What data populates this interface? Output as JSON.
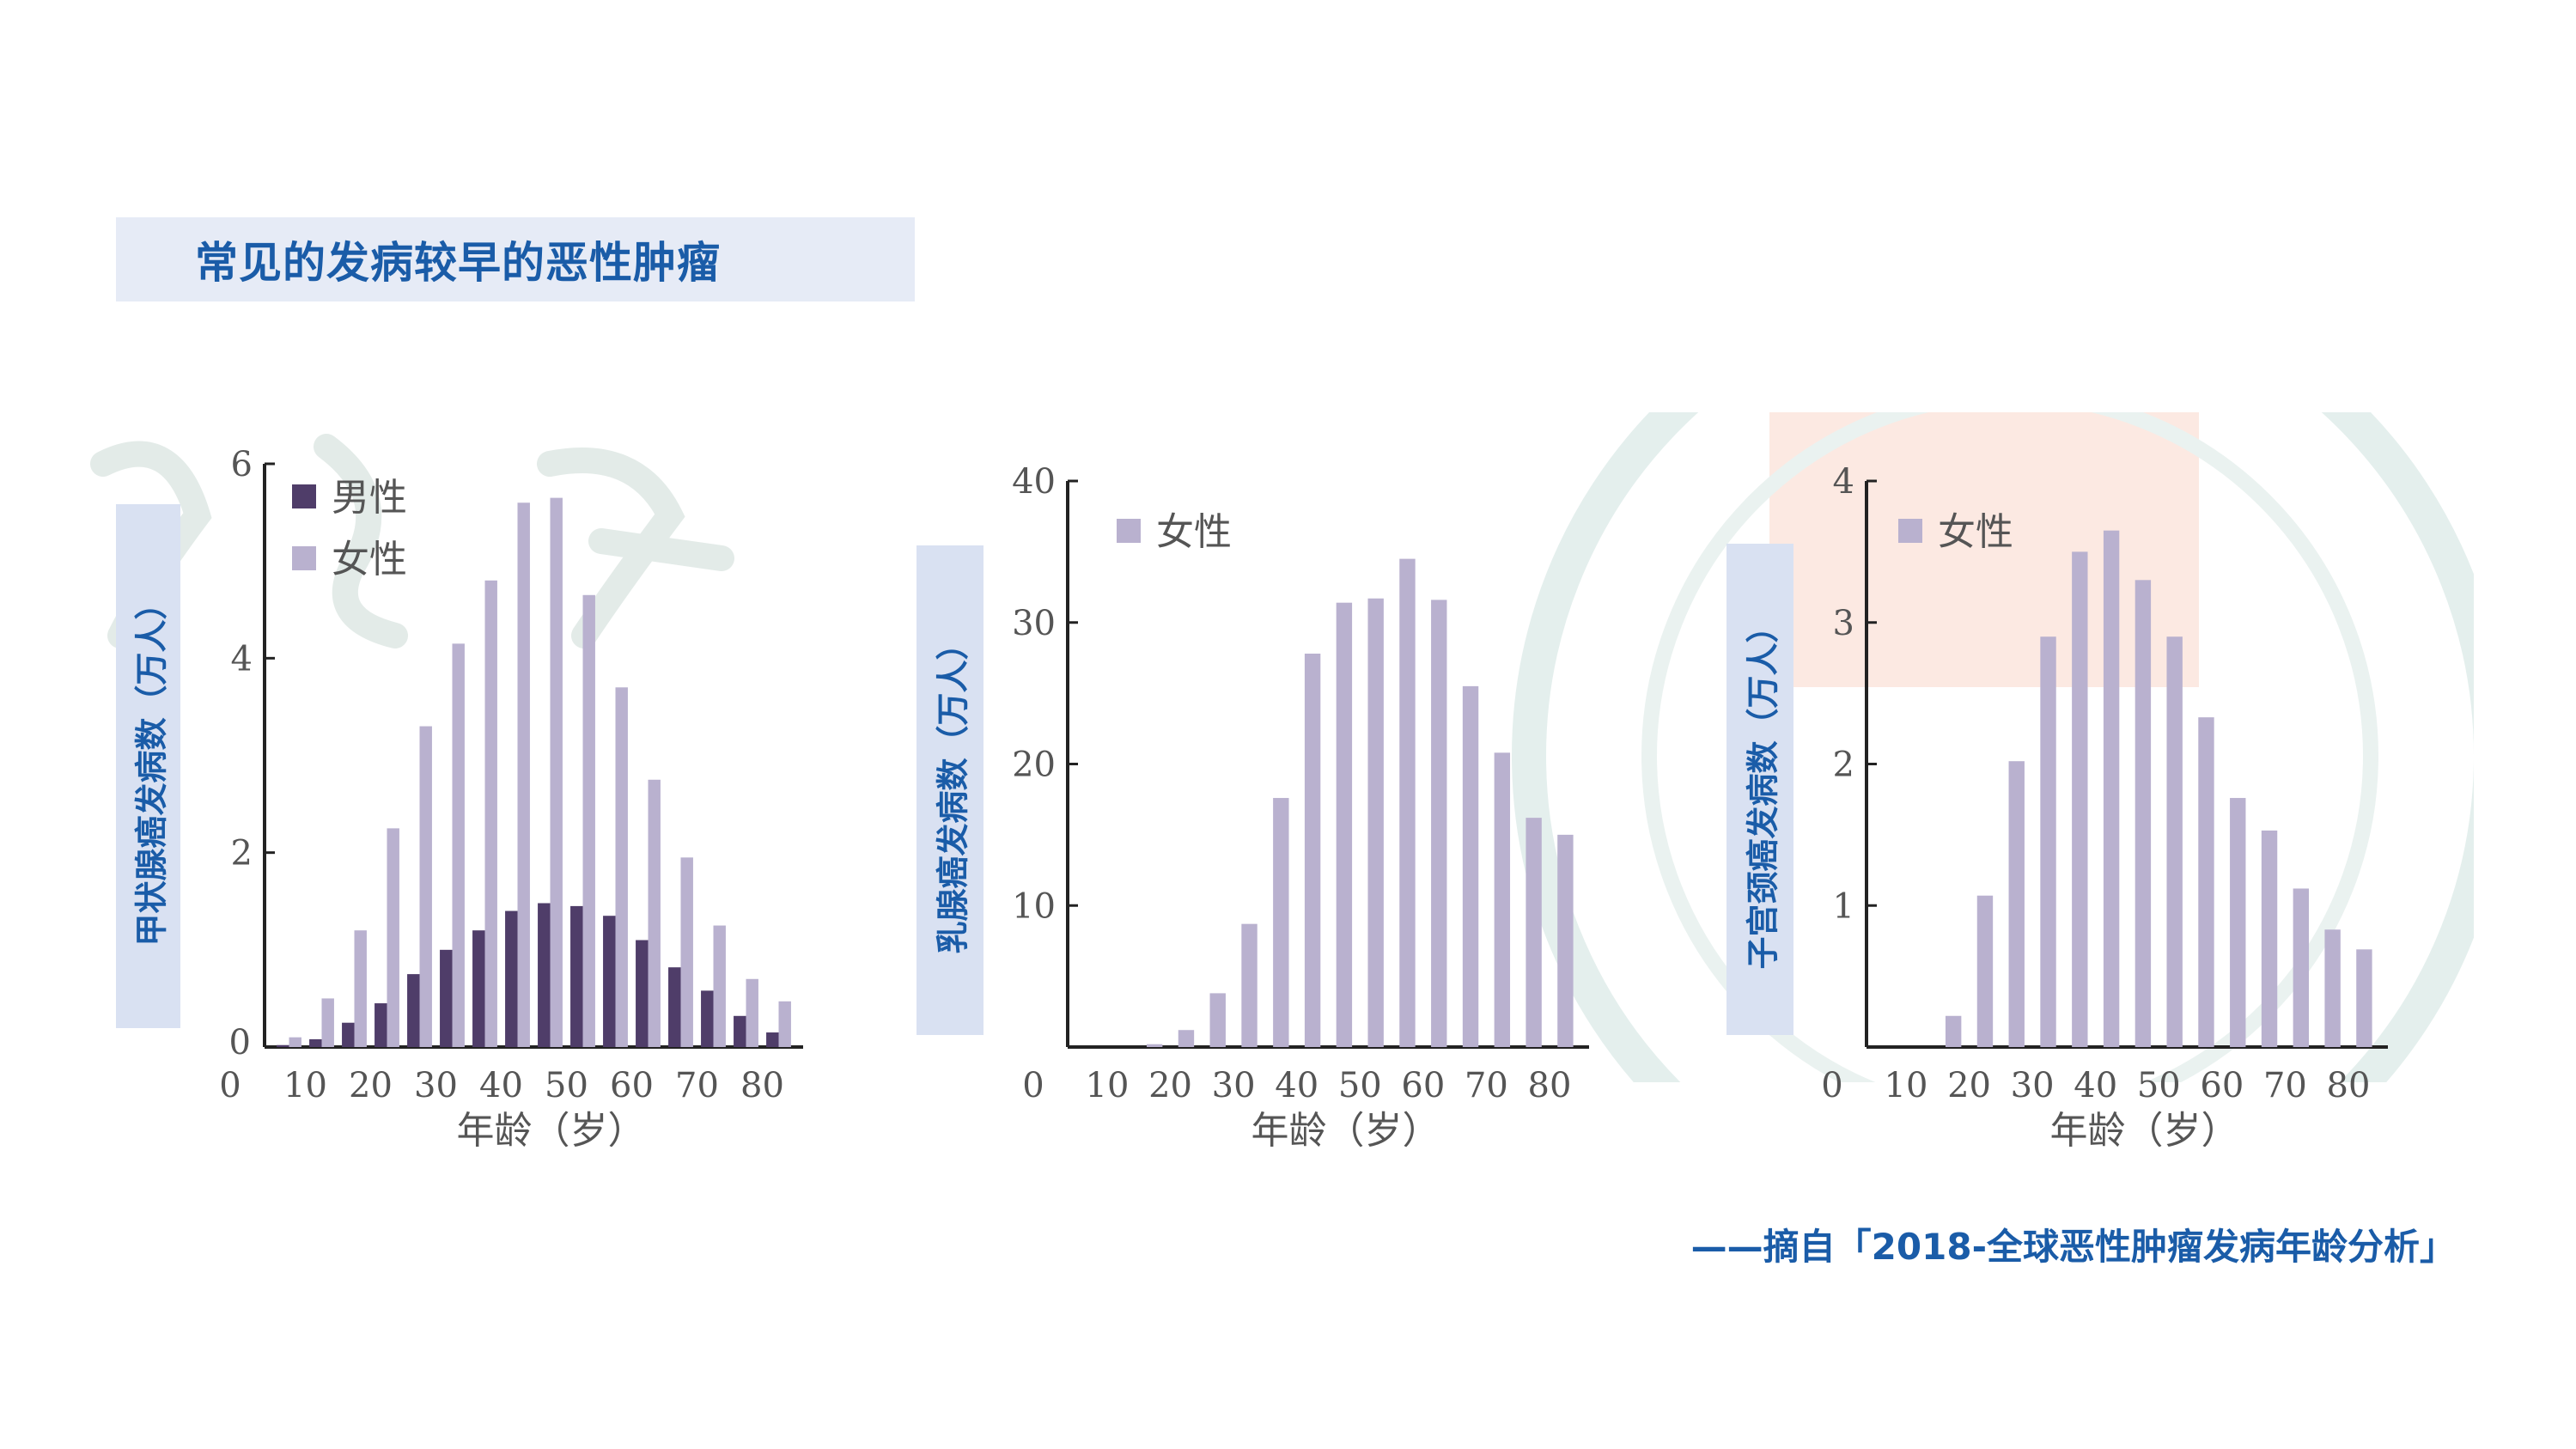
{
  "title": "常见的发病较早的恶性肿瘤",
  "source": "——摘自「2018-全球恶性肿瘤发病年龄分析」",
  "colors": {
    "male": "#4f3d69",
    "female": "#b9b1cf",
    "accent": "#1a5ca8",
    "axis": "#222222"
  },
  "chart_data": [
    {
      "type": "bar",
      "ylabel": "甲状腺癌发病数（万人）",
      "xlabel": "年龄（岁）",
      "x_origin_label": "0",
      "xticks": [
        "10",
        "20",
        "30",
        "40",
        "50",
        "60",
        "70",
        "80"
      ],
      "yticks": [
        "2",
        "4",
        "6"
      ],
      "y_origin_label": "0",
      "ylim": [
        0,
        6
      ],
      "legend": [
        {
          "name": "男性",
          "color": "#4f3d69"
        },
        {
          "name": "女性",
          "color": "#b9b1cf"
        }
      ],
      "categories": [
        "10-14",
        "15-19",
        "20-24",
        "25-29",
        "30-34",
        "35-39",
        "40-44",
        "45-49",
        "50-54",
        "55-59",
        "60-64",
        "65-69",
        "70-74",
        "75-79",
        "80-84",
        "85+"
      ],
      "series": [
        {
          "name": "男性",
          "values": [
            0.02,
            0.08,
            0.25,
            0.45,
            0.75,
            1.0,
            1.2,
            1.4,
            1.48,
            1.45,
            1.35,
            1.1,
            0.82,
            0.58,
            0.32,
            0.15
          ]
        },
        {
          "name": "女性",
          "values": [
            0.1,
            0.5,
            1.2,
            2.25,
            3.3,
            4.15,
            4.8,
            5.6,
            5.65,
            4.65,
            3.7,
            2.75,
            1.95,
            1.25,
            0.7,
            0.47
          ]
        }
      ]
    },
    {
      "type": "bar",
      "ylabel": "乳腺癌发病数（万人）",
      "xlabel": "年龄（岁）",
      "x_origin_label": "0",
      "xticks": [
        "10",
        "20",
        "30",
        "40",
        "50",
        "60",
        "70",
        "80"
      ],
      "yticks": [
        "10",
        "20",
        "30",
        "40"
      ],
      "y_origin_label": "",
      "ylim": [
        0,
        40
      ],
      "legend": [
        {
          "name": "女性",
          "color": "#b9b1cf"
        }
      ],
      "categories": [
        "10-14",
        "15-19",
        "20-24",
        "25-29",
        "30-34",
        "35-39",
        "40-44",
        "45-49",
        "50-54",
        "55-59",
        "60-64",
        "65-69",
        "70-74",
        "75-79",
        "80-84",
        "85+"
      ],
      "series": [
        {
          "name": "女性",
          "values": [
            0.0,
            0.0,
            0.2,
            1.2,
            3.8,
            8.7,
            17.6,
            27.8,
            31.4,
            31.7,
            34.5,
            31.6,
            25.5,
            20.8,
            16.2,
            15.0
          ]
        }
      ]
    },
    {
      "type": "bar",
      "ylabel": "子宫颈癌发病数（万人）",
      "xlabel": "年龄（岁）",
      "x_origin_label": "0",
      "xticks": [
        "10",
        "20",
        "30",
        "40",
        "50",
        "60",
        "70",
        "80"
      ],
      "yticks": [
        "1",
        "2",
        "3",
        "4"
      ],
      "y_origin_label": "",
      "ylim": [
        0,
        4
      ],
      "legend": [
        {
          "name": "女性",
          "color": "#b9b1cf"
        }
      ],
      "categories": [
        "10-14",
        "15-19",
        "20-24",
        "25-29",
        "30-34",
        "35-39",
        "40-44",
        "45-49",
        "50-54",
        "55-59",
        "60-64",
        "65-69",
        "70-74",
        "75-79",
        "80-84",
        "85+"
      ],
      "series": [
        {
          "name": "女性",
          "values": [
            0.0,
            0.0,
            0.22,
            1.07,
            2.02,
            2.9,
            3.5,
            3.65,
            3.3,
            2.9,
            2.33,
            1.76,
            1.53,
            1.12,
            0.83,
            0.69
          ]
        }
      ]
    }
  ]
}
